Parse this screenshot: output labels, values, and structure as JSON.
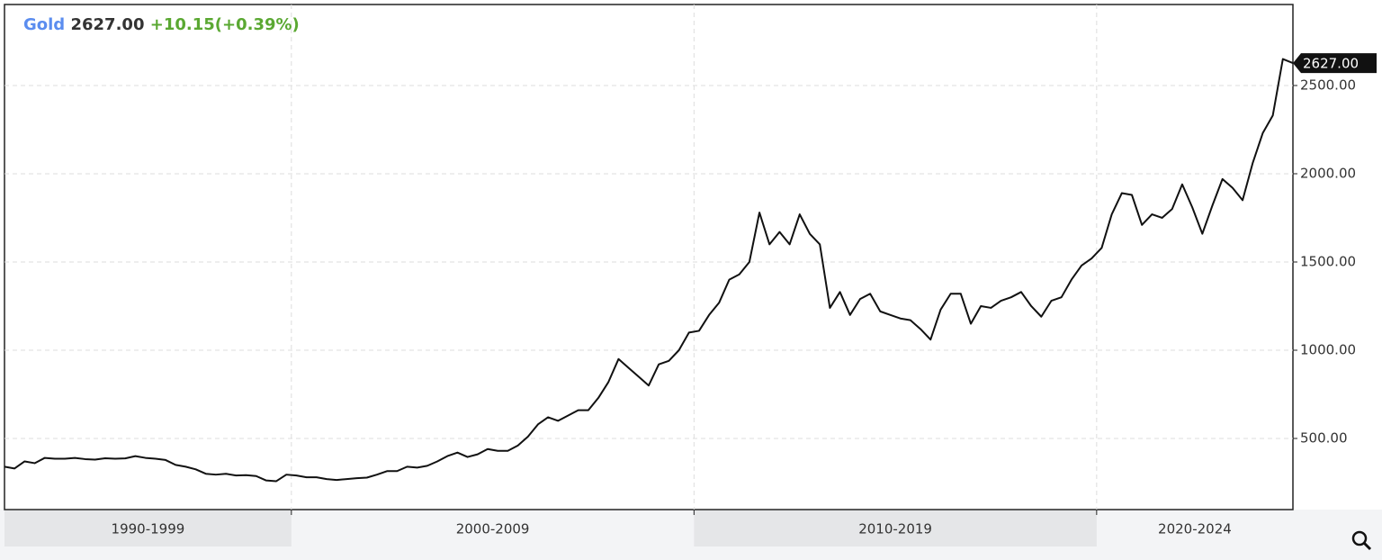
{
  "chart_data": {
    "type": "line",
    "title": "Gold",
    "price": "2627.00",
    "change": "+10.15(+0.39%)",
    "color": "#111111",
    "ylim": [
      97,
      2959
    ],
    "yticks": [
      {
        "value": 500,
        "label": "500.00"
      },
      {
        "value": 1000,
        "label": "1000.00"
      },
      {
        "value": 1500,
        "label": "1500.00"
      },
      {
        "value": 2000,
        "label": "2000.00"
      },
      {
        "value": 2500,
        "label": "2500.00"
      }
    ],
    "grid": true,
    "periods": [
      {
        "label": "1990-1999",
        "values": [
          340,
          330,
          370,
          360,
          390,
          385,
          385,
          390,
          383,
          380,
          388,
          385,
          387,
          400,
          390,
          385,
          378,
          350,
          340,
          325,
          300,
          295,
          300,
          290,
          292,
          287,
          262,
          258,
          295
        ]
      },
      {
        "label": "2000-2009",
        "values": [
          290,
          280,
          280,
          270,
          265,
          270,
          275,
          278,
          295,
          315,
          315,
          340,
          335,
          345,
          370,
          400,
          420,
          395,
          410,
          440,
          430,
          430,
          460,
          510,
          580,
          620,
          600,
          630,
          660,
          660,
          730,
          820,
          950,
          900,
          850,
          800,
          920,
          940,
          1000,
          1100
        ]
      },
      {
        "label": "2010-2019",
        "values": [
          1110,
          1200,
          1270,
          1400,
          1430,
          1500,
          1780,
          1600,
          1670,
          1600,
          1770,
          1660,
          1600,
          1240,
          1330,
          1200,
          1290,
          1320,
          1220,
          1200,
          1180,
          1170,
          1120,
          1060,
          1230,
          1320,
          1320,
          1150,
          1250,
          1240,
          1280,
          1300,
          1330,
          1250,
          1190,
          1280,
          1300,
          1400,
          1480,
          1520
        ]
      },
      {
        "label": "2020-2024",
        "values": [
          1580,
          1770,
          1890,
          1880,
          1710,
          1770,
          1750,
          1800,
          1940,
          1810,
          1660,
          1820,
          1970,
          1920,
          1850,
          2060,
          2230,
          2330,
          2650,
          2627
        ]
      }
    ]
  }
}
